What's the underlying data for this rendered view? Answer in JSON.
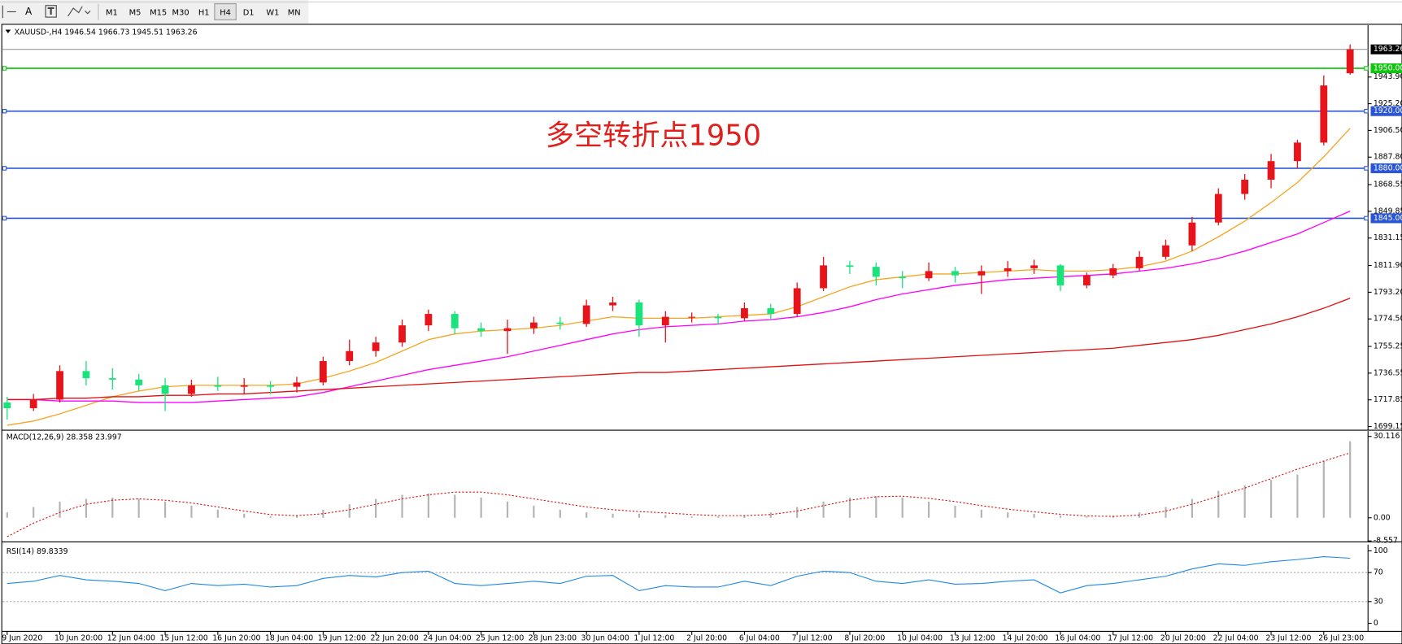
{
  "toolbar": {
    "tools": [
      "A"
    ],
    "timeframes": [
      "M1",
      "M5",
      "M15",
      "M30",
      "H1",
      "H4",
      "D1",
      "W1",
      "MN"
    ],
    "active": "H4"
  },
  "chart_data": [
    {
      "type": "candlestick",
      "title": "XAUUSD-,H4  1946.54 1966.73 1945.51 1963.26",
      "annotation": "多空转折点1950",
      "up_color": "#e8141b",
      "down_color": "#19e37a",
      "x": [
        "9 Jun 2020",
        null,
        "10 Jun 20:00",
        null,
        "12 Jun 04:00",
        null,
        "15 Jun 12:00",
        null,
        "16 Jun 20:00",
        null,
        "18 Jun 04:00",
        null,
        "19 Jun 12:00",
        null,
        "22 Jun 20:00",
        null,
        "24 Jun 04:00",
        null,
        "25 Jun 12:00",
        null,
        "28 Jun 23:00",
        null,
        "30 Jun 04:00",
        null,
        "1 Jul 12:00",
        null,
        "2 Jul 20:00",
        null,
        "6 Jul 04:00",
        null,
        "7 Jul 12:00",
        null,
        "8 Jul 20:00",
        null,
        "10 Jul 04:00",
        null,
        "13 Jul 12:00",
        null,
        "14 Jul 20:00",
        null,
        "16 Jul 04:00",
        null,
        "17 Jul 12:00",
        null,
        "20 Jul 20:00",
        null,
        "22 Jul 04:00",
        null,
        "23 Jul 12:00",
        null,
        "26 Jul 23:00",
        null
      ],
      "candles": [
        [
          1716,
          1720,
          1704,
          1712
        ],
        [
          1712,
          1722,
          1710,
          1718
        ],
        [
          1718,
          1742,
          1716,
          1738
        ],
        [
          1738,
          1745,
          1728,
          1733
        ],
        [
          1733,
          1740,
          1725,
          1732
        ],
        [
          1732,
          1736,
          1724,
          1728
        ],
        [
          1728,
          1733,
          1710,
          1722
        ],
        [
          1722,
          1732,
          1720,
          1728
        ],
        [
          1728,
          1734,
          1724,
          1727
        ],
        [
          1727,
          1733,
          1722,
          1728
        ],
        [
          1728,
          1731,
          1722,
          1727
        ],
        [
          1727,
          1734,
          1723,
          1730
        ],
        [
          1730,
          1748,
          1728,
          1745
        ],
        [
          1745,
          1760,
          1742,
          1752
        ],
        [
          1752,
          1762,
          1748,
          1758
        ],
        [
          1758,
          1774,
          1755,
          1770
        ],
        [
          1770,
          1781,
          1766,
          1778
        ],
        [
          1778,
          1780,
          1764,
          1768
        ],
        [
          1768,
          1772,
          1762,
          1766
        ],
        [
          1766,
          1774,
          1750,
          1768
        ],
        [
          1768,
          1776,
          1764,
          1772
        ],
        [
          1772,
          1776,
          1767,
          1771
        ],
        [
          1771,
          1788,
          1769,
          1784
        ],
        [
          1784,
          1790,
          1780,
          1786
        ],
        [
          1786,
          1788,
          1762,
          1770
        ],
        [
          1770,
          1780,
          1758,
          1776
        ],
        [
          1776,
          1779,
          1772,
          1776
        ],
        [
          1776,
          1778,
          1771,
          1775
        ],
        [
          1775,
          1786,
          1773,
          1782
        ],
        [
          1782,
          1785,
          1774,
          1778
        ],
        [
          1778,
          1800,
          1776,
          1796
        ],
        [
          1796,
          1818,
          1794,
          1812
        ],
        [
          1812,
          1815,
          1806,
          1811
        ],
        [
          1811,
          1814,
          1798,
          1804
        ],
        [
          1804,
          1808,
          1796,
          1803
        ],
        [
          1803,
          1814,
          1801,
          1808
        ],
        [
          1808,
          1811,
          1800,
          1805
        ],
        [
          1805,
          1812,
          1792,
          1808
        ],
        [
          1808,
          1815,
          1804,
          1810
        ],
        [
          1810,
          1816,
          1806,
          1812
        ],
        [
          1812,
          1813,
          1794,
          1798
        ],
        [
          1798,
          1807,
          1796,
          1805
        ],
        [
          1805,
          1813,
          1803,
          1810
        ],
        [
          1810,
          1822,
          1808,
          1818
        ],
        [
          1818,
          1830,
          1816,
          1826
        ],
        [
          1826,
          1846,
          1822,
          1842
        ],
        [
          1842,
          1866,
          1840,
          1862
        ],
        [
          1862,
          1876,
          1858,
          1872
        ],
        [
          1872,
          1890,
          1866,
          1885
        ],
        [
          1885,
          1900,
          1880,
          1898
        ],
        [
          1898,
          1945,
          1896,
          1938
        ],
        [
          1946.54,
          1966.73,
          1945.51,
          1963.26
        ]
      ],
      "series": [
        {
          "color": "#f5a623",
          "values": [
            1700,
            1703,
            1708,
            1714,
            1720,
            1724,
            1727,
            1728,
            1728,
            1728,
            1728,
            1729,
            1733,
            1738,
            1744,
            1752,
            1760,
            1764,
            1766,
            1767,
            1768,
            1770,
            1773,
            1776,
            1775,
            1775,
            1775,
            1776,
            1777,
            1778,
            1783,
            1790,
            1797,
            1802,
            1804,
            1806,
            1806,
            1807,
            1808,
            1809,
            1808,
            1808,
            1809,
            1811,
            1815,
            1822,
            1832,
            1843,
            1856,
            1870,
            1888,
            1908
          ]
        },
        {
          "color": "#ff00ff",
          "values": [
            1718,
            1718,
            1717,
            1717,
            1717,
            1716,
            1716,
            1716,
            1717,
            1718,
            1719,
            1720,
            1723,
            1727,
            1731,
            1735,
            1739,
            1742,
            1745,
            1748,
            1752,
            1756,
            1760,
            1764,
            1767,
            1769,
            1770,
            1771,
            1773,
            1774,
            1776,
            1779,
            1783,
            1788,
            1792,
            1795,
            1798,
            1800,
            1802,
            1803,
            1804,
            1805,
            1806,
            1808,
            1810,
            1813,
            1817,
            1822,
            1828,
            1834,
            1842,
            1850
          ]
        },
        {
          "color": "#e01010",
          "values": [
            1718,
            1718,
            1719,
            1719,
            1720,
            1720,
            1721,
            1721,
            1722,
            1722,
            1723,
            1724,
            1725,
            1726,
            1727,
            1728,
            1729,
            1730,
            1731,
            1732,
            1733,
            1734,
            1735,
            1736,
            1737,
            1737,
            1738,
            1739,
            1740,
            1741,
            1742,
            1743,
            1744,
            1745,
            1746,
            1747,
            1748,
            1749,
            1750,
            1751,
            1752,
            1753,
            1754,
            1756,
            1758,
            1760,
            1763,
            1767,
            1771,
            1776,
            1782,
            1789
          ]
        }
      ],
      "ylim": [
        1696.6,
        1980.2
      ],
      "yticks": [
        1699.15,
        1717.85,
        1736.55,
        1755.25,
        {
          "value": 1774.5,
          "label": "1774.50"
        },
        {
          "value": 1793.2,
          "label": "1793.20"
        },
        {
          "value": 1811.9,
          "label": "1811.90"
        },
        1831.15,
        1849.85,
        1868.55,
        {
          "value": 1887.8,
          "label": "1887.80"
        },
        {
          "value": 1906.5,
          "label": "1906.50"
        },
        {
          "value": 1925.2,
          "label": "1925.20"
        },
        {
          "value": 1943.9,
          "label": "1943.90"
        }
      ],
      "levels": [
        {
          "value": 1950,
          "label": "1950.00",
          "color": "#12c412"
        },
        {
          "value": 1920,
          "label": "1920.00",
          "color": "#2a55d8"
        },
        {
          "value": 1880,
          "label": "1880.00",
          "color": "#2a55d8"
        },
        {
          "value": 1845,
          "label": "1845.00",
          "color": "#2a55d8"
        }
      ],
      "price_line": 1963.26
    },
    {
      "type": "macd",
      "title": "MACD(12,26,9) 28.358 23.997",
      "series": [
        {
          "color": "#b4b4b4",
          "values": [
            2,
            4,
            6,
            7,
            7.5,
            7,
            6,
            4.5,
            3,
            1.5,
            0.5,
            1,
            3,
            5,
            7,
            8.5,
            9,
            8.5,
            7.5,
            6,
            4.5,
            3,
            2,
            1.5,
            1.5,
            1,
            0.5,
            0.5,
            1,
            2,
            4,
            6,
            7.5,
            8,
            7.5,
            6,
            4.5,
            3,
            2,
            1.5,
            0.8,
            0.5,
            0.8,
            2,
            4,
            7,
            10,
            12,
            14,
            16,
            21,
            28.358
          ]
        },
        {
          "color": "#d81010",
          "values": [
            -7,
            -2,
            2,
            5,
            6.5,
            7,
            6.5,
            5.5,
            4,
            2.5,
            1.2,
            0.8,
            1.5,
            3,
            5,
            7,
            8.5,
            9.5,
            9.5,
            8.5,
            7,
            5.5,
            4,
            3,
            2.3,
            1.8,
            1.2,
            0.8,
            0.8,
            1.2,
            2.5,
            4.5,
            6.5,
            7.8,
            8,
            7.2,
            6,
            4.5,
            3.2,
            2.2,
            1.3,
            0.7,
            0.5,
            1,
            2.5,
            5,
            8,
            11,
            14.5,
            18,
            21,
            23.997
          ]
        }
      ],
      "ylim": [
        -8.94,
        32.1
      ],
      "yticks": [
        30.116,
        {
          "value": 0,
          "label": "0.00"
        },
        -8.557
      ]
    },
    {
      "type": "line",
      "title": "RSI(14) 89.8339",
      "color": "#1e88e5",
      "values": [
        55,
        58,
        66,
        60,
        58,
        55,
        45,
        55,
        52,
        54,
        50,
        52,
        62,
        66,
        64,
        70,
        72,
        55,
        52,
        55,
        58,
        55,
        65,
        66,
        45,
        52,
        50,
        50,
        58,
        52,
        65,
        72,
        70,
        58,
        55,
        60,
        54,
        55,
        58,
        60,
        42,
        52,
        55,
        60,
        65,
        75,
        82,
        80,
        85,
        88,
        92,
        89.8339
      ],
      "ylim": [
        -11.1,
        108.6
      ],
      "yticks": [
        100,
        70,
        30,
        0
      ],
      "levels": [
        70,
        30
      ]
    }
  ]
}
